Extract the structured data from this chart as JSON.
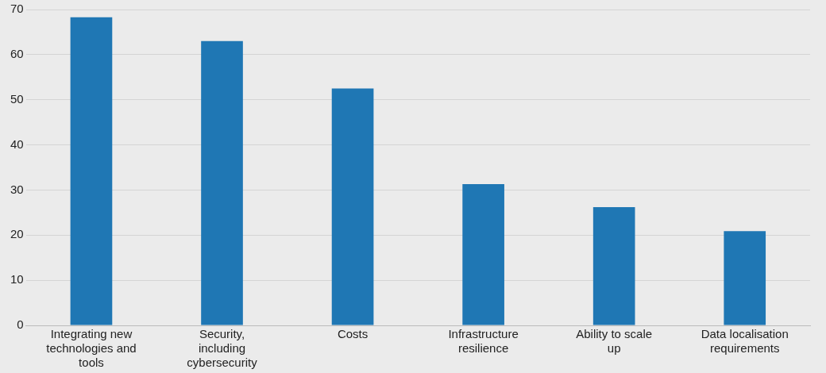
{
  "chart_data": {
    "type": "bar",
    "categories": [
      "Integrating new technologies and tools",
      "Security, including cybersecurity",
      "Costs",
      "Infrastructure resilience",
      "Ability to scale up",
      "Data localisation requirements"
    ],
    "values": [
      68.3,
      63.0,
      52.5,
      31.3,
      26.2,
      20.9
    ],
    "color": "#1f77b4",
    "ylim": [
      0,
      70
    ],
    "yticks": [
      0,
      10,
      20,
      30,
      40,
      50,
      60,
      70
    ],
    "grid": "y",
    "legend": false
  }
}
